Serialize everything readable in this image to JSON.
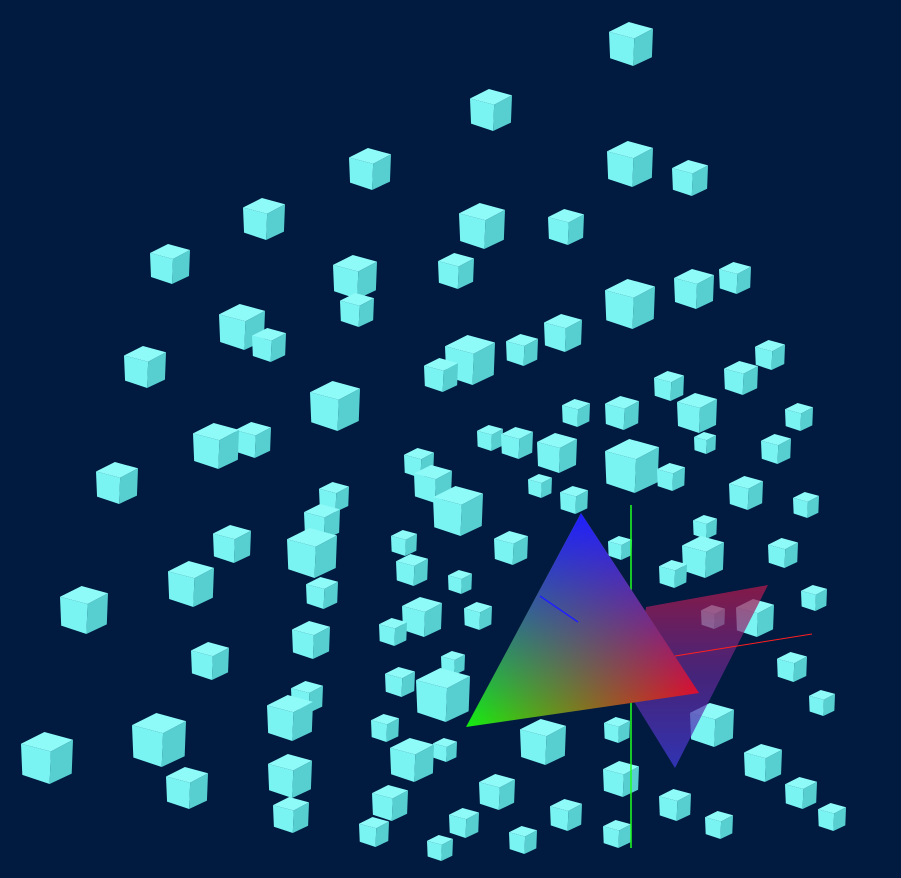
{
  "scene": {
    "background_color": "#011a40",
    "cube_colors": {
      "top": "#8ffbf8",
      "left": "#6fe0e0",
      "right": "#57cfd0",
      "front": "#7af4f2"
    },
    "gradient_triangle_colors": [
      "#1e1eff",
      "#13f010",
      "#ff0a0a"
    ],
    "plane_color": "#b01a4a",
    "plane_lower_color": "#3b3ad0",
    "axis_colors": {
      "x": "#ff2020",
      "y": "#20ff20",
      "z": "#2020ff"
    },
    "object_types": [
      "cube",
      "gradient-triangle",
      "translucent-plane",
      "axis-line"
    ]
  }
}
